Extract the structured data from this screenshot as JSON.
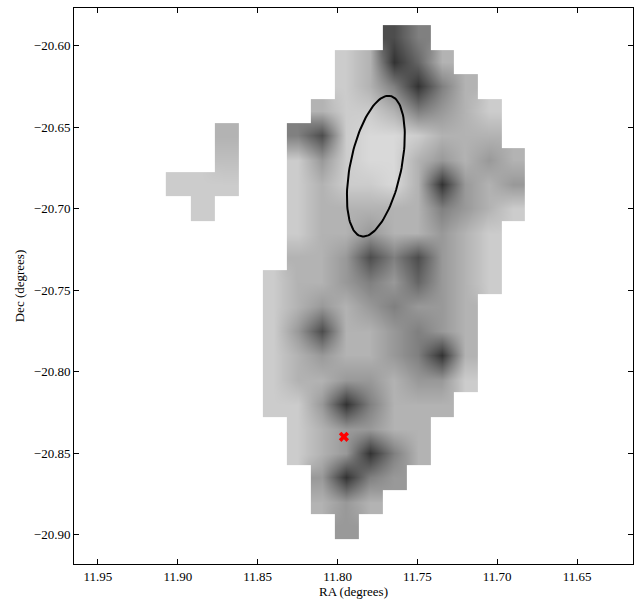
{
  "chart_data": {
    "type": "heatmap",
    "xlabel": "RA (degrees)",
    "ylabel": "Dec (degrees)",
    "xlim": [
      11.965,
      11.615
    ],
    "ylim": [
      -20.918,
      -20.577
    ],
    "xticks": [
      {
        "value": 11.95,
        "label": "11.95"
      },
      {
        "value": 11.9,
        "label": "11.90"
      },
      {
        "value": 11.85,
        "label": "11.85"
      },
      {
        "value": 11.8,
        "label": "11.80"
      },
      {
        "value": 11.75,
        "label": "11.75"
      },
      {
        "value": 11.7,
        "label": "11.70"
      },
      {
        "value": 11.65,
        "label": "11.65"
      }
    ],
    "yticks": [
      {
        "value": -20.6,
        "label": "−20.60"
      },
      {
        "value": -20.65,
        "label": "−20.65"
      },
      {
        "value": -20.7,
        "label": "−20.70"
      },
      {
        "value": -20.75,
        "label": "−20.75"
      },
      {
        "value": -20.8,
        "label": "−20.80"
      },
      {
        "value": -20.85,
        "label": "−20.85"
      },
      {
        "value": -20.9,
        "label": "−20.90"
      }
    ],
    "x": [
      11.69,
      11.705,
      11.72,
      11.735,
      11.75,
      11.765,
      11.78,
      11.795,
      11.81,
      11.825,
      11.84,
      11.855,
      11.87,
      11.885,
      11.9
    ],
    "y": [
      -20.595,
      -20.61,
      -20.625,
      -20.64,
      -20.655,
      -20.67,
      -20.685,
      -20.7,
      -20.715,
      -20.73,
      -20.745,
      -20.76,
      -20.775,
      -20.79,
      -20.805,
      -20.82,
      -20.835,
      -20.85,
      -20.865,
      -20.88,
      -20.895
    ],
    "z": [
      [
        null,
        null,
        null,
        null,
        0.5,
        0.7,
        null,
        null,
        null,
        null,
        null,
        null,
        null,
        null,
        null
      ],
      [
        null,
        null,
        null,
        0.3,
        0.6,
        0.8,
        0.3,
        0.2,
        null,
        null,
        null,
        null,
        null,
        null,
        null
      ],
      [
        null,
        null,
        0.3,
        0.5,
        0.8,
        0.5,
        0.3,
        0.2,
        null,
        null,
        null,
        null,
        null,
        null,
        null
      ],
      [
        null,
        0.2,
        0.3,
        0.4,
        0.5,
        0.3,
        0.2,
        0.2,
        0.3,
        null,
        null,
        null,
        null,
        null,
        null
      ],
      [
        null,
        0.3,
        0.3,
        0.3,
        0.2,
        0.15,
        0.15,
        0.2,
        0.7,
        0.5,
        null,
        null,
        0.3,
        null,
        null
      ],
      [
        0.3,
        0.4,
        0.3,
        0.4,
        0.3,
        0.15,
        0.15,
        0.2,
        0.4,
        0.2,
        null,
        null,
        0.25,
        null,
        null
      ],
      [
        0.4,
        0.3,
        0.4,
        0.8,
        0.3,
        0.15,
        0.2,
        0.2,
        0.3,
        0.2,
        null,
        null,
        0.2,
        0.2,
        0.2
      ],
      [
        0.2,
        0.3,
        0.4,
        0.5,
        0.3,
        0.3,
        0.3,
        0.3,
        0.3,
        0.2,
        null,
        null,
        null,
        0.2,
        null
      ],
      [
        null,
        0.2,
        0.3,
        0.4,
        0.3,
        0.3,
        0.4,
        0.3,
        0.3,
        0.2,
        null,
        null,
        null,
        null,
        null
      ],
      [
        null,
        0.2,
        0.3,
        0.4,
        0.7,
        0.5,
        0.7,
        0.4,
        0.3,
        0.3,
        null,
        null,
        null,
        null,
        null
      ],
      [
        null,
        0.2,
        0.3,
        0.4,
        0.6,
        0.4,
        0.5,
        0.4,
        0.3,
        0.3,
        0.2,
        null,
        null,
        null,
        null
      ],
      [
        null,
        null,
        0.3,
        0.4,
        0.4,
        0.5,
        0.4,
        0.3,
        0.4,
        0.3,
        0.2,
        null,
        null,
        null,
        null
      ],
      [
        null,
        null,
        0.3,
        0.4,
        0.5,
        0.4,
        0.3,
        0.3,
        0.7,
        0.4,
        0.2,
        null,
        null,
        null,
        null
      ],
      [
        null,
        null,
        0.3,
        0.8,
        0.5,
        0.4,
        0.3,
        0.3,
        0.4,
        0.3,
        0.2,
        null,
        null,
        null,
        null
      ],
      [
        null,
        null,
        0.2,
        0.4,
        0.4,
        0.3,
        0.4,
        0.4,
        0.3,
        0.3,
        0.2,
        null,
        null,
        null,
        null
      ],
      [
        null,
        null,
        null,
        0.3,
        0.3,
        0.3,
        0.5,
        0.8,
        0.4,
        0.2,
        0.2,
        null,
        null,
        null,
        null
      ],
      [
        null,
        null,
        null,
        null,
        0.3,
        0.3,
        0.4,
        0.4,
        0.3,
        0.2,
        null,
        null,
        null,
        null,
        null
      ],
      [
        null,
        null,
        null,
        null,
        0.3,
        0.5,
        0.8,
        0.4,
        0.3,
        0.2,
        null,
        null,
        null,
        null,
        null
      ],
      [
        null,
        null,
        null,
        null,
        null,
        0.4,
        0.5,
        0.8,
        0.4,
        null,
        null,
        null,
        null,
        null,
        null
      ],
      [
        null,
        null,
        null,
        null,
        null,
        null,
        0.3,
        0.4,
        0.3,
        null,
        null,
        null,
        null,
        null,
        null
      ],
      [
        null,
        null,
        null,
        null,
        null,
        null,
        null,
        0.4,
        null,
        null,
        null,
        null,
        null,
        null,
        null
      ]
    ],
    "zlim": [
      0,
      1
    ],
    "ellipse": {
      "ra": 11.776,
      "dec": -20.674,
      "semi_major": 0.044,
      "semi_minor": 0.016,
      "angle": 12,
      "color": "black"
    },
    "point": {
      "ra": 11.796,
      "dec": -20.84,
      "color": "red",
      "marker": "x"
    }
  }
}
